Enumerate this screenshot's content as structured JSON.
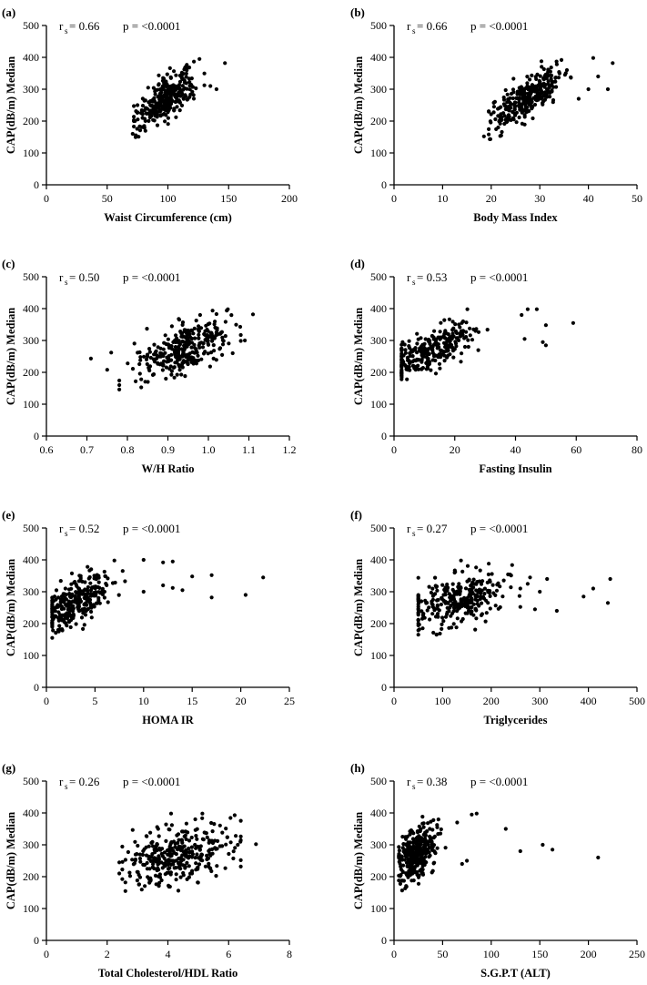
{
  "chart_data": [
    {
      "panel": "(a)",
      "type": "scatter",
      "xlabel": "Waist Circumference (cm)",
      "ylabel": "CAP(dB/m) Median",
      "stat": {
        "r_prefix": "r",
        "r_sub": "s",
        "r_value": " = 0.66",
        "p_text": "p = <0.0001"
      },
      "xlim": [
        0,
        200
      ],
      "ylim": [
        0,
        500
      ],
      "xticks": [
        0,
        50,
        100,
        150,
        200
      ],
      "xtick_labels": [
        "0",
        "50",
        "100",
        "150",
        "200"
      ],
      "yticks": [
        0,
        100,
        200,
        300,
        400,
        500
      ],
      "ytick_labels": [
        "0",
        "100",
        "200",
        "300",
        "400",
        "500"
      ],
      "cloud": {
        "n": 310,
        "x_mean": 98,
        "x_sd": 12,
        "x_min": 72,
        "x_max": 130,
        "y_base": 270,
        "slope": 2.3,
        "noise": 33,
        "y_min": 143,
        "y_max": 398
      },
      "points": [
        [
          147,
          382
        ],
        [
          140,
          300
        ],
        [
          135,
          310
        ],
        [
          126,
          395
        ],
        [
          71,
          160
        ],
        [
          75,
          250
        ],
        [
          78,
          225
        ]
      ]
    },
    {
      "panel": "(b)",
      "type": "scatter",
      "xlabel": "Body Mass Index",
      "ylabel": "CAP(dB/m) Median",
      "stat": {
        "r_prefix": "r",
        "r_sub": "s",
        "r_value": " = 0.66",
        "p_text": "p = <0.0001"
      },
      "xlim": [
        0,
        50
      ],
      "ylim": [
        0,
        500
      ],
      "xticks": [
        0,
        10,
        20,
        30,
        40,
        50
      ],
      "xtick_labels": [
        "0",
        "10",
        "20",
        "30",
        "40",
        "50"
      ],
      "yticks": [
        0,
        100,
        200,
        300,
        400,
        500
      ],
      "ytick_labels": [
        "0",
        "100",
        "200",
        "300",
        "400",
        "500"
      ],
      "cloud": {
        "n": 310,
        "x_mean": 27.5,
        "x_sd": 3.5,
        "x_min": 19.5,
        "x_max": 38,
        "y_base": 275,
        "slope": 9.5,
        "noise": 30,
        "y_min": 143,
        "y_max": 398
      },
      "points": [
        [
          45,
          382
        ],
        [
          44,
          300
        ],
        [
          41,
          398
        ],
        [
          40,
          300
        ],
        [
          42,
          340
        ],
        [
          18.5,
          152
        ],
        [
          38,
          270
        ]
      ]
    },
    {
      "panel": "(c)",
      "type": "scatter",
      "xlabel": "W/H Ratio",
      "ylabel": "CAP(dB/m) Median",
      "stat": {
        "r_prefix": "r",
        "r_sub": "s",
        "r_value": " = 0.50",
        "p_text": "p = <0.0001"
      },
      "xlim": [
        0.6,
        1.2
      ],
      "ylim": [
        0,
        500
      ],
      "xticks": [
        0.6,
        0.7,
        0.8,
        0.9,
        1.0,
        1.1,
        1.2
      ],
      "xtick_labels": [
        "0.6",
        "0.7",
        "0.8",
        "0.9",
        "1.0",
        "1.1",
        "1.2"
      ],
      "yticks": [
        0,
        100,
        200,
        300,
        400,
        500
      ],
      "ytick_labels": [
        "0",
        "100",
        "200",
        "300",
        "400",
        "500"
      ],
      "cloud": {
        "n": 310,
        "x_mean": 0.94,
        "x_sd": 0.055,
        "x_min": 0.78,
        "x_max": 1.08,
        "y_base": 272,
        "slope": 500,
        "noise": 40,
        "y_min": 143,
        "y_max": 398
      },
      "points": [
        [
          0.71,
          243
        ],
        [
          0.75,
          208
        ],
        [
          0.76,
          262
        ],
        [
          1.11,
          382
        ],
        [
          1.09,
          300
        ],
        [
          1.06,
          260
        ],
        [
          0.78,
          160
        ]
      ]
    },
    {
      "panel": "(d)",
      "type": "scatter",
      "xlabel": "Fasting Insulin",
      "ylabel": "CAP(dB/m) Median",
      "stat": {
        "r_prefix": "r",
        "r_sub": "s",
        "r_value": " = 0.53",
        "p_text": "p = <0.0001"
      },
      "xlim": [
        0,
        80
      ],
      "ylim": [
        0,
        500
      ],
      "xticks": [
        0,
        20,
        40,
        60,
        80
      ],
      "xtick_labels": [
        "0",
        "20",
        "40",
        "60",
        "80"
      ],
      "yticks": [
        0,
        100,
        200,
        300,
        400,
        500
      ],
      "ytick_labels": [
        "0",
        "100",
        "200",
        "300",
        "400",
        "500"
      ],
      "cloud": {
        "n": 290,
        "x_mean": 12,
        "x_sd": 7,
        "x_min": 2.5,
        "x_max": 35,
        "y_base": 270,
        "slope": 4.2,
        "noise": 32,
        "y_min": 143,
        "y_max": 398
      },
      "points": [
        [
          59,
          355
        ],
        [
          50,
          348
        ],
        [
          50,
          285
        ],
        [
          49,
          295
        ],
        [
          47,
          398
        ],
        [
          44,
          398
        ],
        [
          43,
          305
        ],
        [
          42,
          380
        ]
      ]
    },
    {
      "panel": "(e)",
      "type": "scatter",
      "xlabel": "HOMA IR",
      "ylabel": "CAP(dB/m) Median",
      "stat": {
        "r_prefix": "r",
        "r_sub": "s",
        "r_value": " = 0.52",
        "p_text": "p = <0.0001"
      },
      "xlim": [
        0,
        25
      ],
      "ylim": [
        0,
        500
      ],
      "xticks": [
        0,
        5,
        10,
        15,
        20,
        25
      ],
      "xtick_labels": [
        "0",
        "5",
        "10",
        "15",
        "20",
        "25"
      ],
      "yticks": [
        0,
        100,
        200,
        300,
        400,
        500
      ],
      "ytick_labels": [
        "0",
        "100",
        "200",
        "300",
        "400",
        "500"
      ],
      "cloud": {
        "n": 290,
        "x_mean": 3,
        "x_sd": 1.8,
        "x_min": 0.6,
        "x_max": 9.5,
        "y_base": 270,
        "slope": 16,
        "noise": 34,
        "y_min": 143,
        "y_max": 398
      },
      "points": [
        [
          22.3,
          345
        ],
        [
          20.5,
          290
        ],
        [
          17,
          352
        ],
        [
          17,
          282
        ],
        [
          15,
          348
        ],
        [
          14,
          305
        ],
        [
          13,
          312
        ],
        [
          13,
          395
        ],
        [
          12,
          320
        ],
        [
          12,
          392
        ],
        [
          10,
          400
        ],
        [
          10,
          300
        ]
      ]
    },
    {
      "panel": "(f)",
      "type": "scatter",
      "xlabel": "Triglycerides",
      "ylabel": "CAP(dB/m) Median",
      "stat": {
        "r_prefix": "r",
        "r_sub": "s",
        "r_value": " = 0.27",
        "p_text": "p = <0.0001"
      },
      "xlim": [
        0,
        500
      ],
      "ylim": [
        0,
        500
      ],
      "xticks": [
        0,
        100,
        200,
        300,
        400,
        500
      ],
      "xtick_labels": [
        "0",
        "100",
        "200",
        "300",
        "400",
        "500"
      ],
      "yticks": [
        0,
        100,
        200,
        300,
        400,
        500
      ],
      "ytick_labels": [
        "0",
        "100",
        "200",
        "300",
        "400",
        "500"
      ],
      "cloud": {
        "n": 300,
        "x_mean": 135,
        "x_sd": 50,
        "x_min": 50,
        "x_max": 260,
        "y_base": 275,
        "slope": 0.35,
        "noise": 40,
        "y_min": 143,
        "y_max": 398
      },
      "points": [
        [
          445,
          340
        ],
        [
          440,
          265
        ],
        [
          410,
          310
        ],
        [
          390,
          285
        ],
        [
          335,
          240
        ],
        [
          315,
          340
        ],
        [
          300,
          300
        ],
        [
          290,
          245
        ],
        [
          280,
          345
        ],
        [
          275,
          325
        ],
        [
          260,
          310
        ]
      ]
    },
    {
      "panel": "(g)",
      "type": "scatter",
      "xlabel": "Total Cholesterol/HDL Ratio",
      "ylabel": "CAP(dB/m) Median",
      "stat": {
        "r_prefix": "r",
        "r_sub": "s",
        "r_value": " = 0.26",
        "p_text": "p = <0.0001"
      },
      "xlim": [
        0,
        8
      ],
      "ylim": [
        0,
        500
      ],
      "xticks": [
        0,
        2,
        4,
        6,
        8
      ],
      "xtick_labels": [
        "0",
        "2",
        "4",
        "6",
        "8"
      ],
      "yticks": [
        0,
        100,
        200,
        300,
        400,
        500
      ],
      "ytick_labels": [
        "0",
        "100",
        "200",
        "300",
        "400",
        "500"
      ],
      "cloud": {
        "n": 330,
        "x_mean": 4.3,
        "x_sd": 0.85,
        "x_min": 2.5,
        "x_max": 6.4,
        "y_base": 272,
        "slope": 18,
        "noise": 45,
        "y_min": 143,
        "y_max": 398
      },
      "points": [
        [
          6.9,
          302
        ],
        [
          2.4,
          210
        ],
        [
          2.4,
          245
        ],
        [
          2.6,
          155
        ],
        [
          2.6,
          182
        ],
        [
          6.2,
          393
        ],
        [
          6.3,
          300
        ]
      ]
    },
    {
      "panel": "(h)",
      "type": "scatter",
      "xlabel": "S.G.P.T (ALT)",
      "ylabel": "CAP(dB/m) Median",
      "stat": {
        "r_prefix": "r",
        "r_sub": "s",
        "r_value": " = 0.38",
        "p_text": "p = <0.0001"
      },
      "xlim": [
        0,
        250
      ],
      "ylim": [
        0,
        500
      ],
      "xticks": [
        0,
        50,
        100,
        150,
        200,
        250
      ],
      "xtick_labels": [
        "0",
        "50",
        "100",
        "150",
        "200",
        "250"
      ],
      "yticks": [
        0,
        100,
        200,
        300,
        400,
        500
      ],
      "ytick_labels": [
        "0",
        "100",
        "200",
        "300",
        "400",
        "500"
      ],
      "cloud": {
        "n": 300,
        "x_mean": 24,
        "x_sd": 10,
        "x_min": 5,
        "x_max": 55,
        "y_base": 272,
        "slope": 1.8,
        "noise": 42,
        "y_min": 143,
        "y_max": 398
      },
      "points": [
        [
          210,
          260
        ],
        [
          163,
          285
        ],
        [
          153,
          300
        ],
        [
          130,
          280
        ],
        [
          115,
          350
        ],
        [
          85,
          398
        ],
        [
          80,
          395
        ],
        [
          75,
          250
        ],
        [
          70,
          240
        ],
        [
          65,
          370
        ]
      ]
    }
  ]
}
